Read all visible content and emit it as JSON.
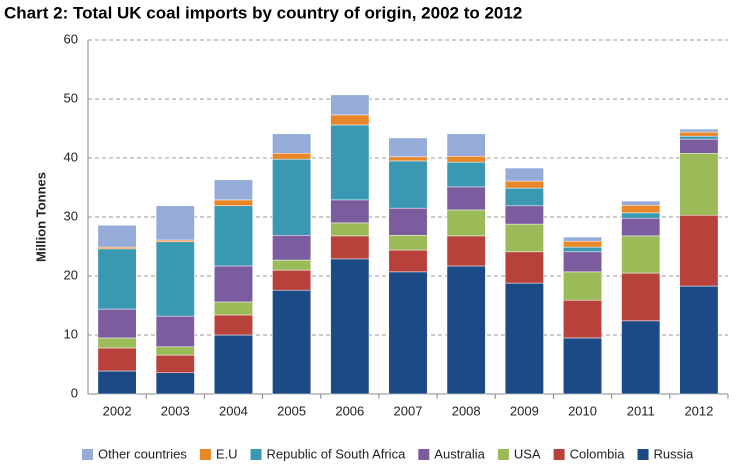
{
  "chart_data": {
    "type": "stacked_bar",
    "title": "Chart 2: Total UK coal imports by country of origin, 2002 to 2012",
    "y_label": "Million Tonnes",
    "categories": [
      "2002",
      "2003",
      "2004",
      "2005",
      "2006",
      "2007",
      "2008",
      "2009",
      "2010",
      "2011",
      "2012"
    ],
    "series": [
      {
        "name": "Russia",
        "color": "#1c4a85",
        "values": [
          3.9,
          3.6,
          10.0,
          17.6,
          22.9,
          20.7,
          21.7,
          18.8,
          9.5,
          12.4,
          18.3
        ]
      },
      {
        "name": "Colombia",
        "color": "#b8413c",
        "values": [
          3.9,
          3.0,
          3.4,
          3.4,
          3.9,
          3.7,
          5.1,
          5.3,
          6.4,
          8.1,
          12.0
        ]
      },
      {
        "name": "USA",
        "color": "#9bbb59",
        "values": [
          1.7,
          1.4,
          2.2,
          1.7,
          2.2,
          2.5,
          4.4,
          4.7,
          4.8,
          6.3,
          10.5
        ]
      },
      {
        "name": "Australia",
        "color": "#7a5c9f",
        "values": [
          4.9,
          5.2,
          6.1,
          4.2,
          3.9,
          4.6,
          3.9,
          3.1,
          3.4,
          3.0,
          2.4
        ]
      },
      {
        "name": "Republic of South Africa",
        "color": "#3a98b2",
        "values": [
          10.2,
          12.6,
          10.2,
          12.9,
          12.7,
          8.0,
          4.2,
          3.0,
          0.8,
          0.9,
          0.5
        ]
      },
      {
        "name": "E.U",
        "color": "#e8862a",
        "values": [
          0.3,
          0.3,
          1.0,
          1.0,
          1.7,
          0.7,
          1.0,
          1.2,
          1.0,
          1.3,
          0.7
        ]
      },
      {
        "name": "Other countries",
        "color": "#95acd8",
        "values": [
          3.7,
          5.8,
          3.4,
          3.3,
          3.4,
          3.2,
          3.8,
          2.2,
          0.7,
          0.7,
          0.5
        ]
      }
    ],
    "ylim": [
      0,
      60
    ],
    "yticks": [
      0,
      10,
      20,
      30,
      40,
      50,
      60
    ],
    "grid": true,
    "legend": "bottom"
  }
}
